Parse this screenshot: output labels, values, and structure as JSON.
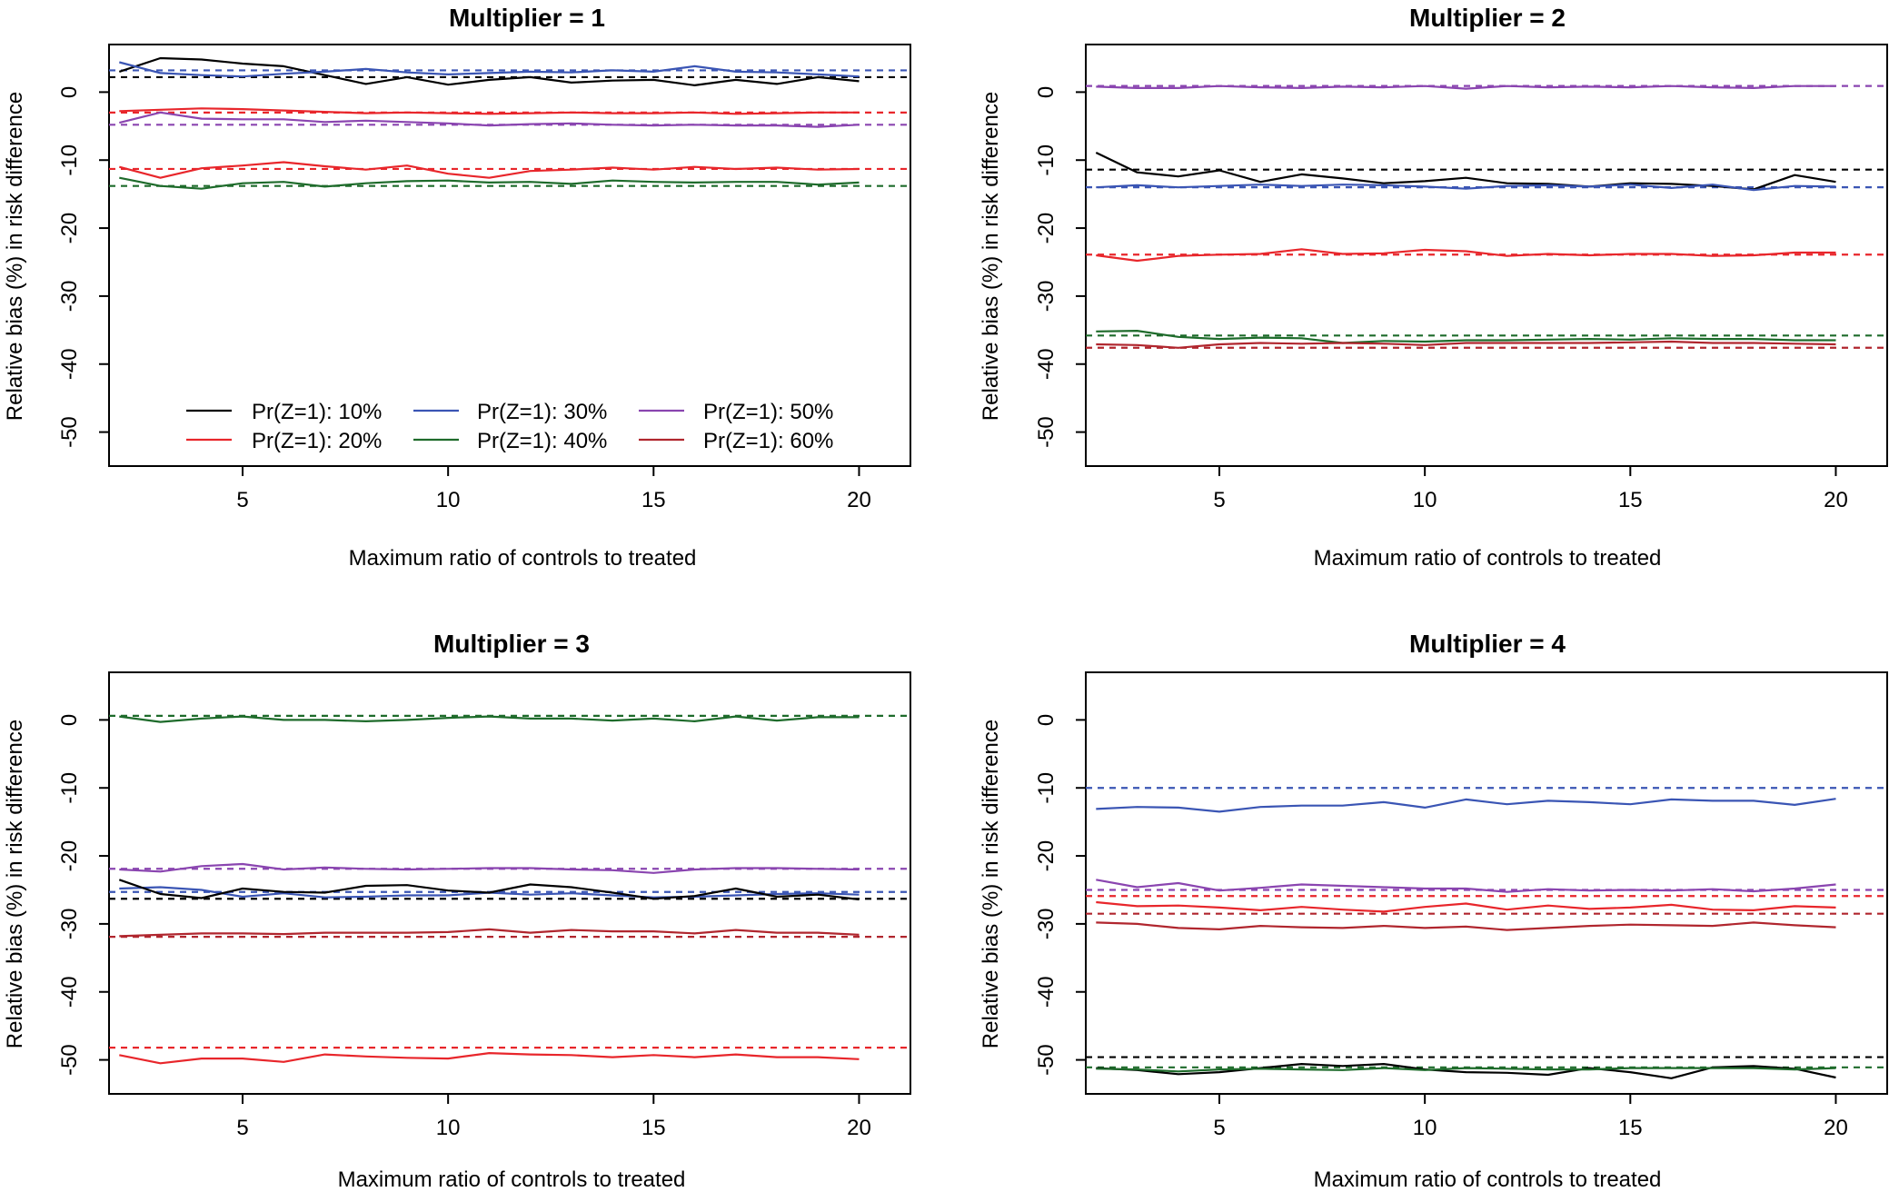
{
  "figure": {
    "xlabel": "Maximum ratio of controls to treated",
    "ylabel": "Relative bias (%) in risk difference",
    "x_ticks": [
      5,
      10,
      15,
      20
    ],
    "y_ticks": [
      0,
      -10,
      -20,
      -30,
      -40,
      -50
    ],
    "legend": [
      {
        "label": "Pr(Z=1): 10%",
        "color": "#000000"
      },
      {
        "label": "Pr(Z=1): 30%",
        "color": "#3a55b4"
      },
      {
        "label": "Pr(Z=1): 50%",
        "color": "#8a45b0"
      },
      {
        "label": "Pr(Z=1): 20%",
        "color": "#e8262b"
      },
      {
        "label": "Pr(Z=1): 40%",
        "color": "#1e6b2b"
      },
      {
        "label": "Pr(Z=1): 60%",
        "color": "#b0262e"
      }
    ]
  },
  "chart_data": [
    {
      "type": "line",
      "title": "Multiplier = 1",
      "xlabel": "Maximum ratio of controls to treated",
      "ylabel": "Relative bias (%) in risk difference",
      "xlim": [
        1.75,
        21.25
      ],
      "ylim": [
        -55,
        7
      ],
      "grid": false,
      "legend_position": "bottom-center",
      "x": [
        2,
        3,
        4,
        5,
        6,
        7,
        8,
        9,
        10,
        11,
        12,
        13,
        14,
        15,
        16,
        17,
        18,
        19,
        20
      ],
      "series": [
        {
          "name": "Pr(Z=1): 10%",
          "color": "#000000",
          "reference": 2.2,
          "values": [
            3.0,
            5.0,
            4.8,
            4.2,
            3.8,
            2.5,
            1.2,
            2.2,
            1.1,
            1.8,
            2.2,
            1.4,
            1.7,
            1.8,
            1.0,
            1.8,
            1.2,
            2.2,
            1.6
          ]
        },
        {
          "name": "Pr(Z=1): 30%",
          "color": "#3a55b4",
          "reference": 3.2,
          "values": [
            4.4,
            2.8,
            2.5,
            2.3,
            2.7,
            3.0,
            3.4,
            2.9,
            2.6,
            2.8,
            3.0,
            2.9,
            3.2,
            3.0,
            3.8,
            3.0,
            2.9,
            2.6,
            2.3
          ]
        },
        {
          "name": "Pr(Z=1): 50%",
          "color": "#8a45b0",
          "reference": -4.8,
          "values": [
            -4.5,
            -3.0,
            -3.9,
            -4.0,
            -4.0,
            -4.4,
            -4.2,
            -4.4,
            -4.6,
            -4.9,
            -4.7,
            -4.6,
            -4.8,
            -4.9,
            -4.8,
            -4.9,
            -4.9,
            -5.1,
            -4.8
          ]
        },
        {
          "name": "Pr(Z=1): 20%",
          "color": "#e8262b",
          "reference": -3.0,
          "values": [
            -2.8,
            -2.6,
            -2.4,
            -2.5,
            -2.7,
            -2.9,
            -3.1,
            -3.0,
            -3.1,
            -3.2,
            -3.1,
            -3.0,
            -3.1,
            -3.1,
            -3.0,
            -3.2,
            -3.1,
            -3.0,
            -3.0
          ]
        },
        {
          "name": "Pr(Z=1): 20%",
          "color": "#e8262b",
          "reference": -11.3,
          "values": [
            -11.0,
            -12.6,
            -11.2,
            -10.8,
            -10.3,
            -10.9,
            -11.4,
            -10.8,
            -12.0,
            -12.6,
            -11.6,
            -11.4,
            -11.1,
            -11.4,
            -11.0,
            -11.3,
            -11.1,
            -11.4,
            -11.3
          ]
        },
        {
          "name": "Pr(Z=1): 40%",
          "color": "#1e6b2b",
          "reference": -13.8,
          "values": [
            -12.6,
            -13.8,
            -14.2,
            -13.4,
            -13.2,
            -13.9,
            -13.4,
            -13.1,
            -13.0,
            -13.3,
            -13.2,
            -13.5,
            -13.0,
            -13.2,
            -13.3,
            -13.2,
            -13.2,
            -13.6,
            -13.3
          ]
        }
      ]
    },
    {
      "type": "line",
      "title": "Multiplier = 2",
      "xlabel": "Maximum ratio of controls to treated",
      "ylabel": "Relative bias (%) in risk difference",
      "xlim": [
        1.75,
        21.25
      ],
      "ylim": [
        -55,
        7
      ],
      "grid": false,
      "x": [
        2,
        3,
        4,
        5,
        6,
        7,
        8,
        9,
        10,
        11,
        12,
        13,
        14,
        15,
        16,
        17,
        18,
        19,
        20
      ],
      "series": [
        {
          "name": "Pr(Z=1): 50%",
          "color": "#8a45b0",
          "reference": 0.9,
          "values": [
            0.8,
            0.6,
            0.6,
            0.9,
            0.7,
            0.6,
            0.8,
            0.7,
            0.9,
            0.5,
            0.9,
            0.7,
            0.8,
            0.7,
            0.9,
            0.7,
            0.6,
            0.9,
            0.9
          ]
        },
        {
          "name": "Pr(Z=1): 10%",
          "color": "#000000",
          "reference": -11.4,
          "values": [
            -8.9,
            -11.8,
            -12.4,
            -11.5,
            -13.2,
            -12.1,
            -12.7,
            -13.4,
            -13.1,
            -12.6,
            -13.4,
            -13.5,
            -13.9,
            -13.4,
            -13.5,
            -13.8,
            -14.3,
            -12.2,
            -13.2
          ]
        },
        {
          "name": "Pr(Z=1): 30%",
          "color": "#3a55b4",
          "reference": -14.0,
          "values": [
            -14.0,
            -13.7,
            -14.0,
            -13.8,
            -13.6,
            -13.8,
            -13.6,
            -13.7,
            -13.9,
            -14.2,
            -13.8,
            -13.7,
            -13.9,
            -13.6,
            -14.1,
            -13.6,
            -14.4,
            -13.8,
            -13.9
          ]
        },
        {
          "name": "Pr(Z=1): 20%",
          "color": "#e8262b",
          "reference": -23.9,
          "values": [
            -24.0,
            -24.8,
            -24.1,
            -23.9,
            -23.8,
            -23.1,
            -23.8,
            -23.7,
            -23.2,
            -23.4,
            -24.1,
            -23.8,
            -24.0,
            -23.8,
            -23.8,
            -24.1,
            -24.0,
            -23.6,
            -23.6
          ]
        },
        {
          "name": "Pr(Z=1): 40%",
          "color": "#1e6b2b",
          "reference": -35.8,
          "values": [
            -35.2,
            -35.1,
            -36.0,
            -36.3,
            -36.1,
            -36.2,
            -36.9,
            -36.6,
            -36.7,
            -36.5,
            -36.5,
            -36.4,
            -36.3,
            -36.4,
            -36.2,
            -36.3,
            -36.3,
            -36.5,
            -36.5
          ]
        },
        {
          "name": "Pr(Z=1): 60%",
          "color": "#b0262e",
          "reference": -37.6,
          "values": [
            -37.1,
            -37.2,
            -37.6,
            -37.1,
            -36.9,
            -37.0,
            -36.9,
            -37.0,
            -37.2,
            -36.9,
            -36.9,
            -36.9,
            -36.9,
            -36.8,
            -36.7,
            -36.9,
            -36.9,
            -37.0,
            -37.1
          ]
        }
      ]
    },
    {
      "type": "line",
      "title": "Multiplier = 3",
      "xlabel": "Maximum ratio of controls to treated",
      "ylabel": "Relative bias (%) in risk difference",
      "xlim": [
        1.75,
        21.25
      ],
      "ylim": [
        -55,
        7
      ],
      "grid": false,
      "x": [
        2,
        3,
        4,
        5,
        6,
        7,
        8,
        9,
        10,
        11,
        12,
        13,
        14,
        15,
        16,
        17,
        18,
        19,
        20
      ],
      "series": [
        {
          "name": "Pr(Z=1): 40%",
          "color": "#1e6b2b",
          "reference": 0.6,
          "values": [
            0.5,
            -0.3,
            0.2,
            0.5,
            0.0,
            0.0,
            -0.2,
            0.0,
            0.3,
            0.5,
            0.2,
            0.2,
            -0.1,
            0.2,
            -0.2,
            0.5,
            -0.1,
            0.4,
            0.4
          ]
        },
        {
          "name": "Pr(Z=1): 50%",
          "color": "#8a45b0",
          "reference": -21.9,
          "values": [
            -22.0,
            -22.3,
            -21.5,
            -21.2,
            -22.0,
            -21.7,
            -21.9,
            -22.0,
            -21.9,
            -21.8,
            -21.8,
            -22.0,
            -22.1,
            -22.5,
            -22.0,
            -21.8,
            -21.8,
            -21.9,
            -22.0
          ]
        },
        {
          "name": "Pr(Z=1): 30%",
          "color": "#3a55b4",
          "reference": -25.3,
          "values": [
            -24.8,
            -24.6,
            -25.0,
            -26.0,
            -25.5,
            -26.1,
            -26.0,
            -25.8,
            -25.8,
            -25.4,
            -25.7,
            -25.5,
            -25.8,
            -26.1,
            -26.0,
            -25.8,
            -25.6,
            -25.5,
            -25.7
          ]
        },
        {
          "name": "Pr(Z=1): 10%",
          "color": "#000000",
          "reference": -26.3,
          "values": [
            -23.5,
            -25.6,
            -26.2,
            -24.8,
            -25.3,
            -25.4,
            -24.4,
            -24.3,
            -25.1,
            -25.4,
            -24.2,
            -24.6,
            -25.4,
            -26.3,
            -25.9,
            -24.8,
            -26.0,
            -25.7,
            -26.4
          ]
        },
        {
          "name": "Pr(Z=1): 60%",
          "color": "#b0262e",
          "reference": -31.9,
          "values": [
            -31.8,
            -31.6,
            -31.4,
            -31.4,
            -31.5,
            -31.3,
            -31.3,
            -31.3,
            -31.2,
            -30.8,
            -31.3,
            -30.9,
            -31.1,
            -31.1,
            -31.4,
            -30.9,
            -31.3,
            -31.3,
            -31.6
          ]
        },
        {
          "name": "Pr(Z=1): 20%",
          "color": "#e8262b",
          "reference": -48.2,
          "values": [
            -49.3,
            -50.5,
            -49.8,
            -49.8,
            -50.3,
            -49.2,
            -49.5,
            -49.7,
            -49.8,
            -49.0,
            -49.2,
            -49.3,
            -49.6,
            -49.3,
            -49.6,
            -49.2,
            -49.6,
            -49.6,
            -49.9
          ]
        }
      ]
    },
    {
      "type": "line",
      "title": "Multiplier = 4",
      "xlabel": "Maximum ratio of controls to treated",
      "ylabel": "Relative bias (%) in risk difference",
      "xlim": [
        1.75,
        21.25
      ],
      "ylim": [
        -55,
        7
      ],
      "grid": false,
      "x": [
        2,
        3,
        4,
        5,
        6,
        7,
        8,
        9,
        10,
        11,
        12,
        13,
        14,
        15,
        16,
        17,
        18,
        19,
        20
      ],
      "series": [
        {
          "name": "Pr(Z=1): 30%",
          "color": "#3a55b4",
          "reference": -10.0,
          "values": [
            -13.1,
            -12.8,
            -12.9,
            -13.5,
            -12.8,
            -12.6,
            -12.6,
            -12.1,
            -12.9,
            -11.7,
            -12.4,
            -11.9,
            -12.1,
            -12.4,
            -11.7,
            -11.9,
            -11.9,
            -12.5,
            -11.6
          ]
        },
        {
          "name": "Pr(Z=1): 50%",
          "color": "#8a45b0",
          "reference": -25.0,
          "values": [
            -23.5,
            -24.6,
            -24.0,
            -25.1,
            -24.7,
            -24.2,
            -24.4,
            -24.6,
            -24.8,
            -24.8,
            -25.3,
            -24.9,
            -25.1,
            -25.0,
            -25.1,
            -24.9,
            -25.2,
            -24.8,
            -24.2
          ]
        },
        {
          "name": "Pr(Z=1): 20%",
          "color": "#e8262b",
          "reference": -25.9,
          "values": [
            -26.8,
            -27.4,
            -27.3,
            -27.6,
            -28.0,
            -27.5,
            -27.9,
            -28.2,
            -27.5,
            -27.0,
            -27.9,
            -27.3,
            -27.8,
            -27.6,
            -27.2,
            -27.9,
            -28.0,
            -27.4,
            -27.6
          ]
        },
        {
          "name": "Pr(Z=1): 60%",
          "color": "#b0262e",
          "reference": -28.5,
          "values": [
            -29.8,
            -30.0,
            -30.6,
            -30.8,
            -30.3,
            -30.5,
            -30.6,
            -30.3,
            -30.6,
            -30.4,
            -30.9,
            -30.6,
            -30.3,
            -30.1,
            -30.2,
            -30.3,
            -29.8,
            -30.2,
            -30.5
          ]
        },
        {
          "name": "Pr(Z=1): 10%",
          "color": "#000000",
          "reference": -49.6,
          "values": [
            -51.2,
            -51.5,
            -52.1,
            -51.8,
            -51.2,
            -50.6,
            -50.9,
            -50.6,
            -51.4,
            -51.8,
            -51.9,
            -52.2,
            -51.2,
            -51.8,
            -52.7,
            -51.1,
            -50.9,
            -51.3,
            -52.6
          ]
        },
        {
          "name": "Pr(Z=1): 40%",
          "color": "#1e6b2b",
          "reference": -51.1,
          "values": [
            -51.3,
            -51.4,
            -51.7,
            -51.4,
            -51.3,
            -51.4,
            -51.5,
            -51.2,
            -51.5,
            -51.2,
            -51.3,
            -51.4,
            -51.4,
            -51.2,
            -51.2,
            -51.2,
            -51.2,
            -51.4,
            -51.2
          ]
        }
      ]
    }
  ]
}
